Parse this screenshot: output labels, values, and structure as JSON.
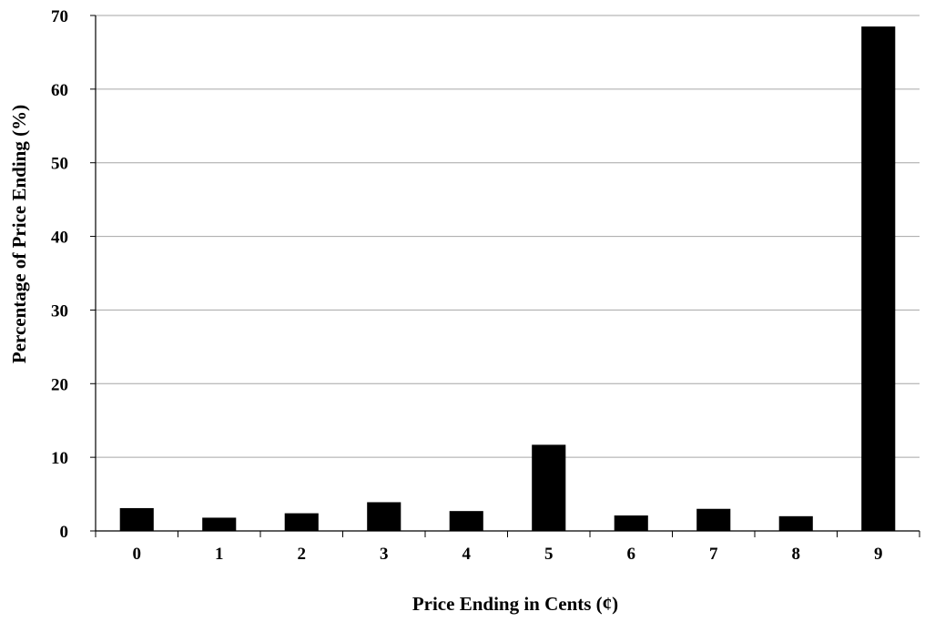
{
  "chart_data": {
    "type": "bar",
    "title": "",
    "xlabel": "Price Ending in Cents (¢)",
    "ylabel": "Percentage of Price Ending (%)",
    "categories": [
      "0",
      "1",
      "2",
      "3",
      "4",
      "5",
      "6",
      "7",
      "8",
      "9"
    ],
    "values": [
      3.1,
      1.8,
      2.4,
      3.9,
      2.7,
      11.7,
      2.1,
      3.0,
      2.0,
      68.5
    ],
    "ylim": [
      0,
      70
    ],
    "yticks": [
      0,
      10,
      20,
      30,
      40,
      50,
      60,
      70
    ],
    "grid": true,
    "legend": "none",
    "colors": {
      "bar": "#000000",
      "grid": "#a6a6a6",
      "axis": "#000000"
    }
  }
}
